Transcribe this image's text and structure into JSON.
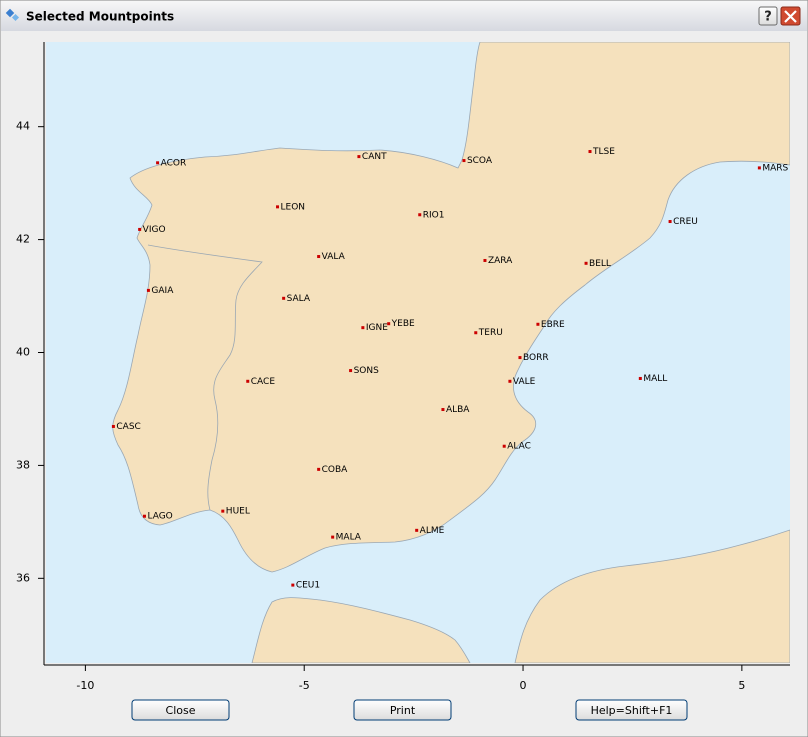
{
  "window": {
    "title": "Selected Mountpoints",
    "help_icon": "?"
  },
  "chart_data": {
    "type": "scatter",
    "labels": [
      "ACOR",
      "CANT",
      "SCOA",
      "TLSE",
      "MARS",
      "LEON",
      "RIO1",
      "CREU",
      "VIGO",
      "VALA",
      "ZARA",
      "BELL",
      "GAIA",
      "SALA",
      "IGNE",
      "YEBE",
      "TERU",
      "EBRE",
      "BORR",
      "CACE",
      "SONS",
      "VALE",
      "MALL",
      "ALBA",
      "CASC",
      "ALAC",
      "COBA",
      "HUEL",
      "LAGO",
      "ALME",
      "MALA",
      "CEU1"
    ],
    "x": [
      -8.35,
      -3.75,
      -1.35,
      1.53,
      5.4,
      -5.61,
      -2.36,
      3.36,
      -8.76,
      -4.67,
      -0.87,
      1.44,
      -8.56,
      -5.47,
      -3.66,
      -3.07,
      -1.08,
      0.34,
      -0.07,
      -6.29,
      -3.94,
      -0.3,
      2.68,
      -1.83,
      -9.36,
      -0.43,
      -4.67,
      -6.86,
      -8.65,
      -2.43,
      -4.35,
      -5.26
    ],
    "y": [
      43.36,
      43.47,
      43.4,
      43.56,
      43.27,
      42.58,
      42.44,
      42.32,
      42.18,
      41.7,
      41.63,
      41.58,
      41.1,
      40.96,
      40.44,
      40.51,
      40.35,
      40.5,
      39.91,
      39.49,
      39.68,
      39.49,
      39.54,
      38.99,
      38.69,
      38.34,
      37.93,
      37.19,
      37.1,
      36.85,
      36.73,
      35.88
    ],
    "color": "#cc0000",
    "xlim": [
      -10.9,
      6.1
    ],
    "ylim": [
      34.5,
      45.5
    ],
    "xticks": [
      -10,
      -5,
      0,
      5
    ],
    "yticks": [
      36,
      38,
      40,
      42,
      44
    ]
  },
  "buttons": [
    "Close",
    "Print",
    "Help=Shift+F1"
  ]
}
